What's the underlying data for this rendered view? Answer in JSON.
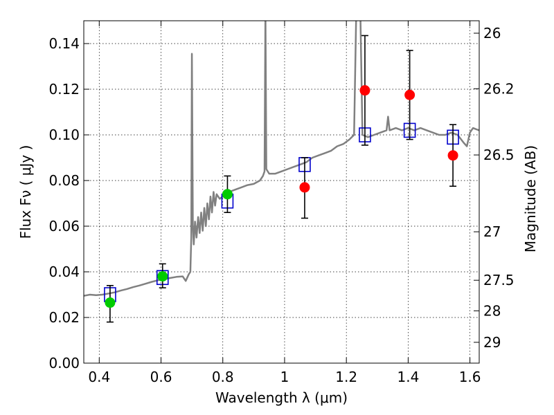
{
  "chart_data": {
    "type": "scatter",
    "xlabel": "Wavelength  λ (μm)",
    "ylabel": "Flux  Fν  ( μJy )",
    "y2label": "Magnitude (AB)",
    "xlim": [
      0.35,
      1.63
    ],
    "ylim": [
      0.0,
      0.15
    ],
    "grid": true,
    "x_ticks": [
      {
        "value": 0.4,
        "label": "0.4"
      },
      {
        "value": 0.6,
        "label": "0.6"
      },
      {
        "value": 0.8,
        "label": "0.8"
      },
      {
        "value": 1.0,
        "label": "1"
      },
      {
        "value": 1.2,
        "label": "1.2"
      },
      {
        "value": 1.4,
        "label": "1.4"
      },
      {
        "value": 1.6,
        "label": "1.6"
      }
    ],
    "y_ticks": [
      {
        "value": 0.0,
        "label": "0.00"
      },
      {
        "value": 0.02,
        "label": "0.02"
      },
      {
        "value": 0.04,
        "label": "0.04"
      },
      {
        "value": 0.06,
        "label": "0.06"
      },
      {
        "value": 0.08,
        "label": "0.08"
      },
      {
        "value": 0.1,
        "label": "0.10"
      },
      {
        "value": 0.12,
        "label": "0.12"
      },
      {
        "value": 0.14,
        "label": "0.14"
      }
    ],
    "y2_ticks": [
      {
        "mag": 26.0,
        "label": "26"
      },
      {
        "mag": 26.2,
        "label": "26.2"
      },
      {
        "mag": 26.5,
        "label": "26.5"
      },
      {
        "mag": 27.0,
        "label": "27"
      },
      {
        "mag": 27.5,
        "label": "27.5"
      },
      {
        "mag": 28.0,
        "label": "28"
      },
      {
        "mag": 29.0,
        "label": "29"
      }
    ],
    "colors": {
      "spectrum": "#808080",
      "green_points": "#00cc00",
      "red_points": "#ff0000",
      "model_boxes": "#0000cc",
      "errorbars": "#000000",
      "grid": "#000000"
    },
    "series": [
      {
        "name": "template-spectrum",
        "style": "line",
        "points": [
          [
            0.35,
            0.0295
          ],
          [
            0.37,
            0.03
          ],
          [
            0.39,
            0.0298
          ],
          [
            0.41,
            0.03
          ],
          [
            0.43,
            0.0305
          ],
          [
            0.45,
            0.031
          ],
          [
            0.47,
            0.0318
          ],
          [
            0.49,
            0.0325
          ],
          [
            0.51,
            0.0333
          ],
          [
            0.53,
            0.034
          ],
          [
            0.55,
            0.0348
          ],
          [
            0.57,
            0.0356
          ],
          [
            0.59,
            0.0363
          ],
          [
            0.61,
            0.0368
          ],
          [
            0.63,
            0.0373
          ],
          [
            0.65,
            0.0378
          ],
          [
            0.67,
            0.038
          ],
          [
            0.68,
            0.036
          ],
          [
            0.69,
            0.039
          ],
          [
            0.695,
            0.04
          ],
          [
            0.698,
            0.055
          ],
          [
            0.7,
            0.1355
          ],
          [
            0.703,
            0.06
          ],
          [
            0.706,
            0.052
          ],
          [
            0.71,
            0.062
          ],
          [
            0.715,
            0.055
          ],
          [
            0.72,
            0.064
          ],
          [
            0.725,
            0.057
          ],
          [
            0.73,
            0.066
          ],
          [
            0.735,
            0.058
          ],
          [
            0.74,
            0.068
          ],
          [
            0.745,
            0.06
          ],
          [
            0.75,
            0.07
          ],
          [
            0.755,
            0.063
          ],
          [
            0.76,
            0.073
          ],
          [
            0.765,
            0.066
          ],
          [
            0.77,
            0.075
          ],
          [
            0.775,
            0.069
          ],
          [
            0.78,
            0.074
          ],
          [
            0.79,
            0.072
          ],
          [
            0.8,
            0.073
          ],
          [
            0.82,
            0.075
          ],
          [
            0.84,
            0.076
          ],
          [
            0.86,
            0.077
          ],
          [
            0.88,
            0.078
          ],
          [
            0.9,
            0.0785
          ],
          [
            0.92,
            0.08
          ],
          [
            0.93,
            0.082
          ],
          [
            0.935,
            0.084
          ],
          [
            0.938,
            0.155
          ],
          [
            0.941,
            0.085
          ],
          [
            0.95,
            0.083
          ],
          [
            0.97,
            0.083
          ],
          [
            0.99,
            0.084
          ],
          [
            1.01,
            0.085
          ],
          [
            1.03,
            0.086
          ],
          [
            1.05,
            0.087
          ],
          [
            1.07,
            0.088
          ],
          [
            1.09,
            0.09
          ],
          [
            1.11,
            0.091
          ],
          [
            1.13,
            0.092
          ],
          [
            1.15,
            0.093
          ],
          [
            1.17,
            0.095
          ],
          [
            1.19,
            0.096
          ],
          [
            1.21,
            0.098
          ],
          [
            1.225,
            0.1
          ],
          [
            1.232,
            0.155
          ],
          [
            1.245,
            0.155
          ],
          [
            1.252,
            0.1
          ],
          [
            1.27,
            0.099
          ],
          [
            1.29,
            0.1
          ],
          [
            1.31,
            0.101
          ],
          [
            1.33,
            0.102
          ],
          [
            1.335,
            0.108
          ],
          [
            1.34,
            0.102
          ],
          [
            1.36,
            0.103
          ],
          [
            1.38,
            0.102
          ],
          [
            1.4,
            0.103
          ],
          [
            1.42,
            0.102
          ],
          [
            1.44,
            0.103
          ],
          [
            1.46,
            0.102
          ],
          [
            1.48,
            0.101
          ],
          [
            1.5,
            0.1
          ],
          [
            1.52,
            0.1
          ],
          [
            1.54,
            0.101
          ],
          [
            1.56,
            0.1
          ],
          [
            1.58,
            0.0965
          ],
          [
            1.59,
            0.095
          ],
          [
            1.6,
            0.101
          ],
          [
            1.61,
            0.103
          ],
          [
            1.62,
            0.1025
          ],
          [
            1.63,
            0.102
          ]
        ]
      },
      {
        "name": "model-photometry",
        "style": "open-square",
        "points": [
          [
            0.435,
            0.03
          ],
          [
            0.605,
            0.0375
          ],
          [
            0.815,
            0.071
          ],
          [
            1.065,
            0.087
          ],
          [
            1.26,
            0.1
          ],
          [
            1.405,
            0.102
          ],
          [
            1.545,
            0.099
          ]
        ]
      },
      {
        "name": "green-detections",
        "style": "filled-circle",
        "points": [
          {
            "x": 0.435,
            "y": 0.0265,
            "ylo": 0.018,
            "yhi": 0.034
          },
          {
            "x": 0.605,
            "y": 0.038,
            "ylo": 0.033,
            "yhi": 0.0435
          },
          {
            "x": 0.815,
            "y": 0.074,
            "ylo": 0.066,
            "yhi": 0.082
          }
        ]
      },
      {
        "name": "red-detections",
        "style": "filled-circle",
        "points": [
          {
            "x": 1.065,
            "y": 0.077,
            "ylo": 0.0635,
            "yhi": 0.09
          },
          {
            "x": 1.26,
            "y": 0.1195,
            "ylo": 0.0955,
            "yhi": 0.1435
          },
          {
            "x": 1.405,
            "y": 0.1175,
            "ylo": 0.098,
            "yhi": 0.137
          },
          {
            "x": 1.545,
            "y": 0.091,
            "ylo": 0.0775,
            "yhi": 0.1045
          }
        ]
      }
    ]
  }
}
